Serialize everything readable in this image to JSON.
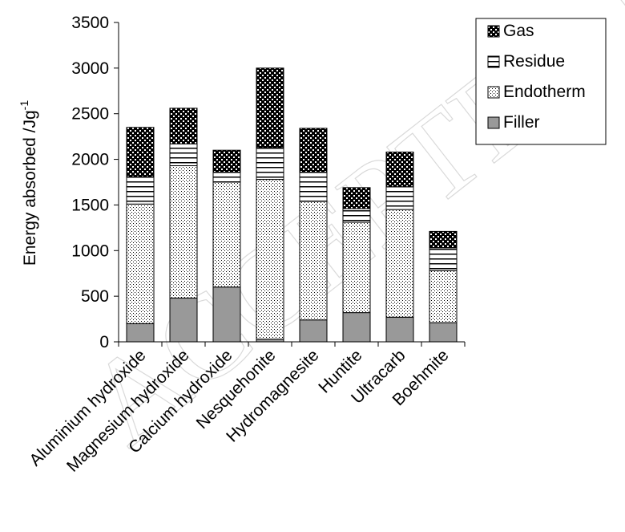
{
  "chart_data": {
    "type": "bar",
    "stacked": true,
    "categories": [
      "Aluminium hydroxide",
      "Magnesium hydroxide",
      "Calcium hydroxide",
      "Nesquehonite",
      "Hydromagnesite",
      "Huntite",
      "Ultracarb",
      "Boehmite"
    ],
    "series": [
      {
        "name": "Filler",
        "values": [
          200,
          480,
          600,
          30,
          240,
          320,
          270,
          210
        ],
        "fill": "solid-gray"
      },
      {
        "name": "Endotherm",
        "values": [
          1310,
          1450,
          1150,
          1750,
          1300,
          990,
          1180,
          570
        ],
        "fill": "dotted"
      },
      {
        "name": "Residue",
        "values": [
          300,
          240,
          110,
          350,
          320,
          150,
          250,
          250
        ],
        "fill": "horizontal-lines"
      },
      {
        "name": "Gas",
        "values": [
          540,
          390,
          240,
          870,
          480,
          230,
          380,
          180
        ],
        "fill": "checker"
      }
    ],
    "ylabel": "Energy absorbed /Jg-1",
    "ylabel_main": "Energy absorbed /Jg",
    "ylabel_sup": "-1",
    "ylim": [
      0,
      3500
    ],
    "yticks": [
      0,
      500,
      1000,
      1500,
      2000,
      2500,
      3000,
      3500
    ],
    "legend": {
      "placement": "top-right",
      "order": [
        "Gas",
        "Residue",
        "Endotherm",
        "Filler"
      ]
    },
    "grid": false,
    "colors": {
      "filler": "#999999",
      "outline": "#000000"
    }
  },
  "watermark": {
    "text": "ACCEPTED MANUSCRIPT"
  }
}
